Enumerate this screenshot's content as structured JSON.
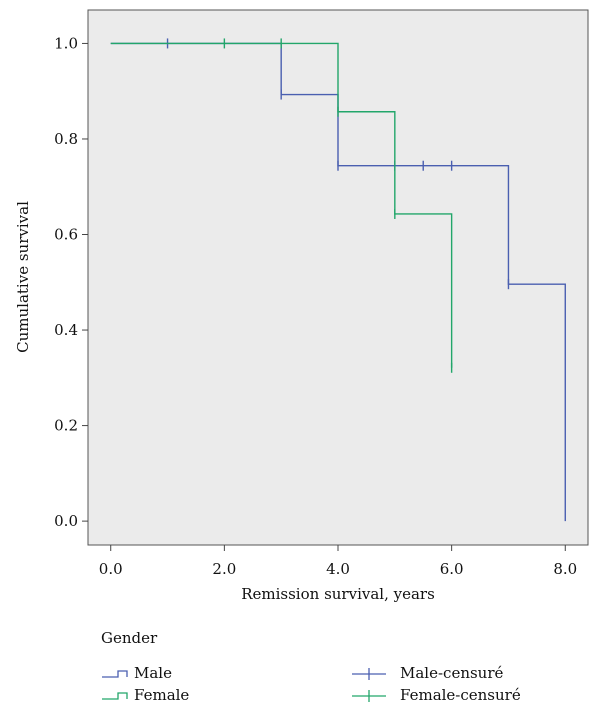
{
  "chart_data": {
    "type": "line",
    "title": "",
    "xlabel": "Remission survival, years",
    "ylabel": "Cumulative survival",
    "xlim": [
      -0.4,
      8.4
    ],
    "ylim": [
      -0.05,
      1.07
    ],
    "x_ticks": [
      0,
      2,
      4,
      6,
      8
    ],
    "x_tick_labels": [
      "0.0",
      "2.0",
      "4.0",
      "6.0",
      "8.0"
    ],
    "y_ticks": [
      0,
      0.2,
      0.4,
      0.6,
      0.8,
      1.0
    ],
    "y_tick_labels": [
      "0.0",
      "0.2",
      "0.4",
      "0.6",
      "0.8",
      "1.0"
    ],
    "grid": false,
    "plot_background": "#ebebeb",
    "legend": {
      "title": "Gender",
      "placement": "bottom",
      "items": [
        {
          "label": "Male",
          "kind": "step",
          "color": "#4a5fb0"
        },
        {
          "label": "Female",
          "kind": "step",
          "color": "#22a66a"
        },
        {
          "label": "Male-censuré",
          "kind": "censor",
          "color": "#4a5fb0"
        },
        {
          "label": "Female-censuré",
          "kind": "censor",
          "color": "#22a66a"
        }
      ]
    },
    "series": [
      {
        "name": "Male",
        "color": "#4a5fb0",
        "step_points": [
          [
            0,
            1.0
          ],
          [
            3,
            1.0
          ],
          [
            3,
            0.893
          ],
          [
            4,
            0.893
          ],
          [
            4,
            0.744
          ],
          [
            7,
            0.744
          ],
          [
            7,
            0.496
          ],
          [
            8,
            0.496
          ],
          [
            8,
            0.0
          ]
        ],
        "censored": [
          [
            1,
            1.0
          ],
          [
            3,
            0.893
          ],
          [
            4,
            0.744
          ],
          [
            5,
            0.744
          ],
          [
            5.5,
            0.744
          ],
          [
            6,
            0.744
          ],
          [
            7,
            0.496
          ]
        ]
      },
      {
        "name": "Female",
        "color": "#22a66a",
        "step_points": [
          [
            0,
            1.0
          ],
          [
            4,
            1.0
          ],
          [
            4,
            0.857
          ],
          [
            5,
            0.857
          ],
          [
            5,
            0.643
          ],
          [
            6,
            0.643
          ],
          [
            6,
            0.321
          ]
        ],
        "censored": [
          [
            2,
            1.0
          ],
          [
            3,
            1.0
          ],
          [
            4,
            0.857
          ],
          [
            5,
            0.643
          ],
          [
            6,
            0.321
          ]
        ]
      }
    ]
  }
}
